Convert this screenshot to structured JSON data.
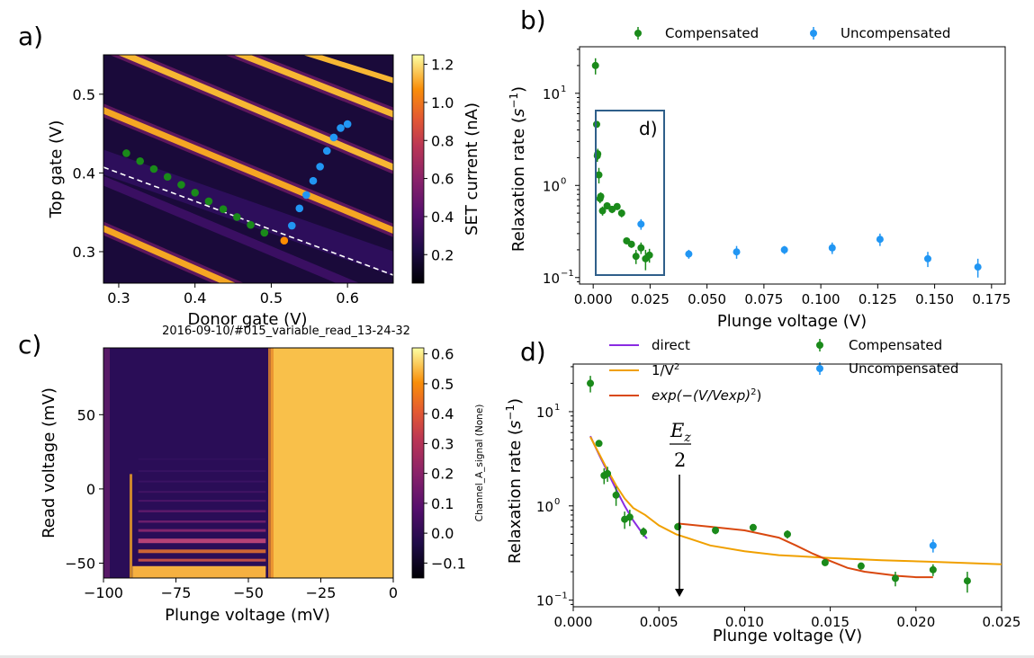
{
  "colors": {
    "compensated": "#1a8a1a",
    "uncompensated": "#2196f3",
    "orange_point": "#ff8c00",
    "direct": "#8a2be2",
    "inv_v2": "#f0a000",
    "exp": "#d9480f",
    "inset_box": "#2f5f8a",
    "dashed_line": "#ffffff"
  },
  "panel_a": {
    "label": "a)",
    "xlabel": "Donor gate (V)",
    "ylabel": "Top gate (V)",
    "colorbar_label": "SET current (nA)",
    "xticks": [
      "0.3",
      "0.4",
      "0.5",
      "0.6"
    ],
    "yticks": [
      "0.3",
      "0.4",
      "0.5"
    ],
    "cbar_ticks": [
      "0.2",
      "0.4",
      "0.6",
      "0.8",
      "1.0",
      "1.2"
    ]
  },
  "panel_b": {
    "label": "b)",
    "ylabel": "Relaxation rate",
    "ylabel_unit": "s",
    "ylabel_exp": "−1",
    "xlabel": "Plunge voltage (V)",
    "legend": [
      "Compensated",
      "Uncompensated"
    ],
    "inset_label": "d)",
    "xticks": [
      "0.000",
      "0.025",
      "0.050",
      "0.075",
      "0.100",
      "0.125",
      "0.150",
      "0.175"
    ],
    "ytick_exps": [
      "−1",
      "0",
      "1"
    ]
  },
  "panel_c": {
    "label": "c)",
    "title": "2016-09-10/#015_variable_read_13-24-32",
    "xlabel": "Plunge voltage (mV)",
    "ylabel": "Read voltage (mV)",
    "colorbar_label": "Channel_A_signal (None)",
    "xticks": [
      "−100",
      "−75",
      "−50",
      "−25",
      "0"
    ],
    "yticks": [
      "−50",
      "0",
      "50"
    ],
    "cbar_ticks": [
      "−0.1",
      "0.0",
      "0.1",
      "0.2",
      "0.3",
      "0.4",
      "0.5",
      "0.6"
    ]
  },
  "panel_d": {
    "label": "d)",
    "ylabel": "Relaxation rate",
    "ylabel_unit": "s",
    "ylabel_exp": "−1",
    "xlabel": "Plunge voltage (V)",
    "legend_lines": [
      "direct",
      "1/V",
      "exp(−(V/Vexp)"
    ],
    "legend_points": [
      "Compensated",
      "Uncompensated"
    ],
    "annotation_num": "E",
    "annotation_sub": "z",
    "annotation_den": "2",
    "xticks": [
      "0.000",
      "0.005",
      "0.010",
      "0.015",
      "0.020",
      "0.025"
    ],
    "ytick_exps": [
      "−1",
      "0",
      "1"
    ]
  },
  "chart_data": [
    {
      "type": "heatmap",
      "panel": "a",
      "xlabel": "Donor gate (V)",
      "ylabel": "Top gate (V)",
      "xlim": [
        0.28,
        0.66
      ],
      "ylim": [
        0.26,
        0.55
      ],
      "colorbar_range": [
        0.05,
        1.25
      ],
      "series": [
        {
          "name": "Compensated",
          "x": [
            0.31,
            0.328,
            0.346,
            0.364,
            0.382,
            0.4,
            0.418,
            0.437,
            0.455,
            0.473,
            0.491
          ],
          "y": [
            0.425,
            0.415,
            0.405,
            0.395,
            0.385,
            0.375,
            0.364,
            0.354,
            0.344,
            0.334,
            0.324
          ]
        },
        {
          "name": "Uncompensated",
          "x": [
            0.527,
            0.537,
            0.546,
            0.555,
            0.564,
            0.573,
            0.582,
            0.591,
            0.6
          ],
          "y": [
            0.333,
            0.355,
            0.372,
            0.39,
            0.408,
            0.428,
            0.445,
            0.457,
            0.462
          ]
        },
        {
          "name": "Transition",
          "x": [
            0.517
          ],
          "y": [
            0.314
          ]
        }
      ]
    },
    {
      "type": "scatter",
      "panel": "b",
      "xlabel": "Plunge voltage (V)",
      "ylabel": "Relaxation rate (s^-1)",
      "xlim": [
        -0.006,
        0.181
      ],
      "ylim": [
        0.085,
        32
      ],
      "yscale": "log",
      "legend_position": "top",
      "series": [
        {
          "name": "Compensated",
          "x": [
            0.001,
            0.0015,
            0.0018,
            0.002,
            0.0025,
            0.003,
            0.0033,
            0.0041,
            0.0061,
            0.0083,
            0.0105,
            0.0125,
            0.0147,
            0.0168,
            0.0188,
            0.021,
            0.023,
            0.0247
          ],
          "y": [
            20,
            4.6,
            2.1,
            2.2,
            1.3,
            0.72,
            0.76,
            0.53,
            0.6,
            0.55,
            0.59,
            0.5,
            0.25,
            0.23,
            0.17,
            0.21,
            0.16,
            0.175
          ],
          "err": [
            4,
            0.3,
            0.3,
            0.3,
            0.25,
            0.08,
            0.08,
            0.06,
            0.05,
            0.05,
            0.05,
            0.05,
            0.02,
            0.02,
            0.03,
            0.03,
            0.04,
            0.03
          ]
        },
        {
          "name": "Uncompensated",
          "x": [
            0.021,
            0.042,
            0.063,
            0.084,
            0.105,
            0.126,
            0.147,
            0.169
          ],
          "y": [
            0.38,
            0.18,
            0.19,
            0.2,
            0.21,
            0.26,
            0.16,
            0.13
          ],
          "err": [
            0.05,
            0.02,
            0.03,
            0.02,
            0.03,
            0.04,
            0.03,
            0.03
          ]
        }
      ]
    },
    {
      "type": "heatmap",
      "panel": "c",
      "title": "2016-09-10/#015_variable_read_13-24-32",
      "xlabel": "Plunge voltage (mV)",
      "ylabel": "Read voltage (mV)",
      "xlim": [
        -100,
        0
      ],
      "ylim": [
        -60,
        95
      ],
      "colorbar_range": [
        -0.15,
        0.62
      ],
      "transition_x": -44
    },
    {
      "type": "scatter",
      "panel": "d",
      "xlabel": "Plunge voltage (V)",
      "ylabel": "Relaxation rate (s^-1)",
      "xlim": [
        0,
        0.025
      ],
      "ylim": [
        0.085,
        32
      ],
      "yscale": "log",
      "annotation_x": 0.006,
      "series": [
        {
          "name": "Compensated",
          "x": [
            0.001,
            0.0015,
            0.0018,
            0.002,
            0.0025,
            0.003,
            0.0033,
            0.0041,
            0.0061,
            0.0083,
            0.0105,
            0.0125,
            0.0147,
            0.0168,
            0.0188,
            0.021,
            0.023
          ],
          "y": [
            20,
            4.6,
            2.1,
            2.2,
            1.3,
            0.72,
            0.76,
            0.53,
            0.6,
            0.55,
            0.59,
            0.5,
            0.25,
            0.23,
            0.17,
            0.21,
            0.16
          ],
          "err": [
            4,
            0.3,
            0.4,
            0.4,
            0.3,
            0.15,
            0.15,
            0.06,
            0.05,
            0.05,
            0.05,
            0.05,
            0.02,
            0.02,
            0.03,
            0.03,
            0.04
          ]
        },
        {
          "name": "Uncompensated",
          "x": [
            0.021
          ],
          "y": [
            0.38
          ],
          "err": [
            0.06
          ]
        },
        {
          "name": "direct",
          "x": [
            0.001,
            0.0015,
            0.002,
            0.0025,
            0.003,
            0.0035,
            0.004,
            0.0043
          ],
          "y": [
            5.5,
            3.5,
            2.3,
            1.5,
            1.0,
            0.7,
            0.52,
            0.45
          ]
        },
        {
          "name": "1/V^2",
          "x": [
            0.001,
            0.0015,
            0.002,
            0.0025,
            0.003,
            0.0035,
            0.0042,
            0.005,
            0.006,
            0.008,
            0.01,
            0.012,
            0.015,
            0.018,
            0.021,
            0.025
          ],
          "y": [
            5.4,
            3.6,
            2.4,
            1.65,
            1.2,
            0.95,
            0.8,
            0.62,
            0.5,
            0.38,
            0.33,
            0.3,
            0.28,
            0.265,
            0.255,
            0.24
          ]
        },
        {
          "name": "exp(-(V/Vexp)^2)",
          "x": [
            0.0061,
            0.008,
            0.01,
            0.012,
            0.013,
            0.014,
            0.015,
            0.016,
            0.017,
            0.018,
            0.019,
            0.02,
            0.021
          ],
          "y": [
            0.65,
            0.6,
            0.55,
            0.46,
            0.38,
            0.31,
            0.26,
            0.22,
            0.2,
            0.19,
            0.18,
            0.175,
            0.175
          ]
        }
      ]
    }
  ]
}
